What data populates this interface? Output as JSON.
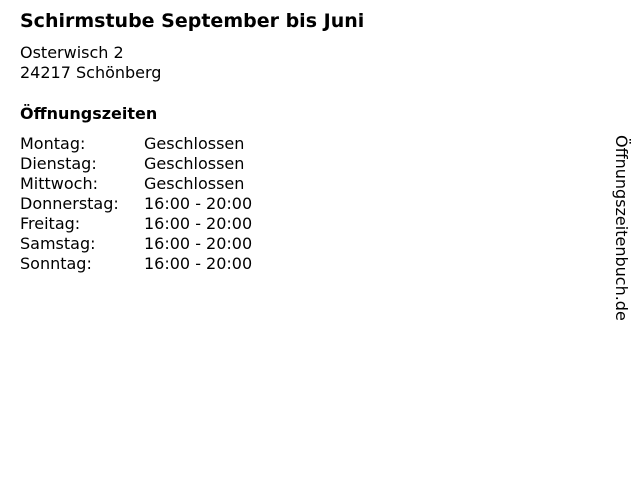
{
  "title": "Schirmstube September bis Juni",
  "address": {
    "street": "Osterwisch 2",
    "city": "24217 Schönberg"
  },
  "hours_heading": "Öffnungszeiten",
  "hours": [
    {
      "day": "Montag:",
      "time": "Geschlossen"
    },
    {
      "day": "Dienstag:",
      "time": "Geschlossen"
    },
    {
      "day": "Mittwoch:",
      "time": "Geschlossen"
    },
    {
      "day": "Donnerstag:",
      "time": "16:00 - 20:00"
    },
    {
      "day": "Freitag:",
      "time": "16:00 - 20:00"
    },
    {
      "day": "Samstag:",
      "time": "16:00 - 20:00"
    },
    {
      "day": "Sonntag:",
      "time": "16:00 - 20:00"
    }
  ],
  "watermark": "Öffnungszeitenbuch.de"
}
